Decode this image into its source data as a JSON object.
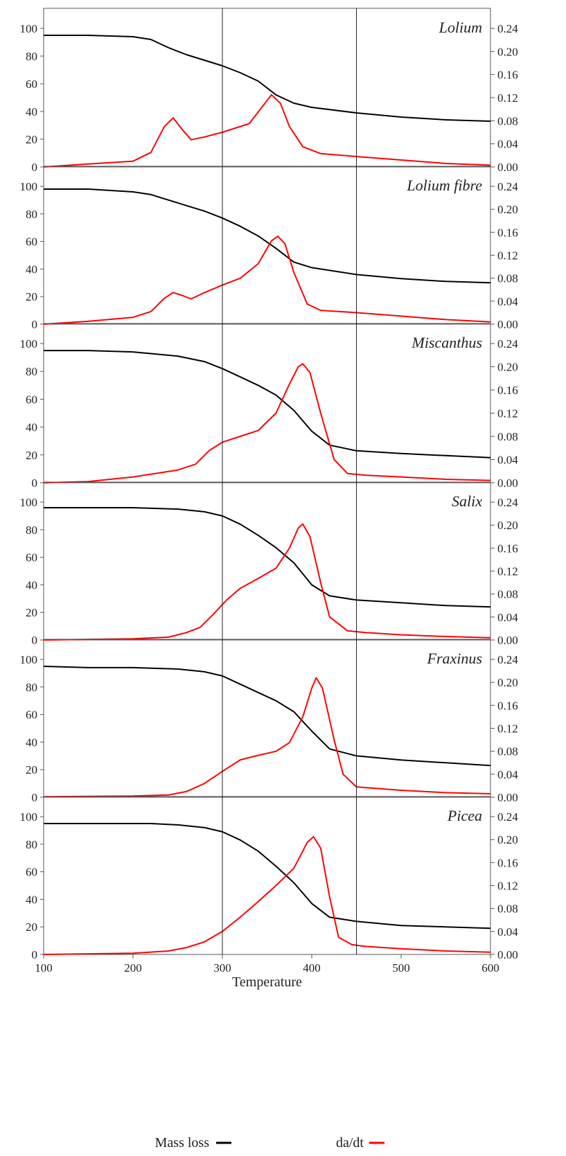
{
  "chart_data": {
    "type": "line",
    "xlabel": "Temperature",
    "xlim": [
      100,
      600
    ],
    "x_ticks": [
      "100",
      "200",
      "300",
      "400",
      "500",
      "600"
    ],
    "ylim_left": [
      0,
      100
    ],
    "y_left_ticks": [
      "0",
      "20",
      "40",
      "60",
      "80",
      "100"
    ],
    "ylim_right": [
      0,
      0.24
    ],
    "y_right_ticks": [
      "0.00",
      "0.04",
      "0.08",
      "0.12",
      "0.16",
      "0.20",
      "0.24"
    ],
    "reference_lines_x": [
      300,
      450
    ],
    "legend": [
      {
        "label": "Mass loss",
        "color": "#000000"
      },
      {
        "label": "da/dt",
        "color": "#ff0000"
      }
    ],
    "colors": {
      "mass_loss": "#000000",
      "rate": "#ff0000"
    },
    "panels": [
      {
        "name": "Lolium",
        "mass_loss": [
          [
            100,
            95
          ],
          [
            150,
            95
          ],
          [
            200,
            94
          ],
          [
            220,
            92
          ],
          [
            240,
            86
          ],
          [
            260,
            81
          ],
          [
            280,
            77
          ],
          [
            300,
            73
          ],
          [
            320,
            68
          ],
          [
            340,
            62
          ],
          [
            360,
            52
          ],
          [
            380,
            46
          ],
          [
            400,
            43
          ],
          [
            450,
            39
          ],
          [
            500,
            36
          ],
          [
            550,
            34
          ],
          [
            600,
            33
          ]
        ],
        "rate": [
          [
            100,
            0
          ],
          [
            150,
            0.005
          ],
          [
            200,
            0.01
          ],
          [
            220,
            0.025
          ],
          [
            235,
            0.07
          ],
          [
            245,
            0.085
          ],
          [
            255,
            0.065
          ],
          [
            265,
            0.047
          ],
          [
            280,
            0.052
          ],
          [
            300,
            0.06
          ],
          [
            330,
            0.075
          ],
          [
            345,
            0.105
          ],
          [
            355,
            0.125
          ],
          [
            365,
            0.11
          ],
          [
            375,
            0.07
          ],
          [
            390,
            0.035
          ],
          [
            410,
            0.023
          ],
          [
            450,
            0.018
          ],
          [
            500,
            0.012
          ],
          [
            550,
            0.006
          ],
          [
            600,
            0.003
          ]
        ]
      },
      {
        "name": "Lolium fibre",
        "mass_loss": [
          [
            100,
            98
          ],
          [
            150,
            98
          ],
          [
            200,
            96
          ],
          [
            220,
            94
          ],
          [
            240,
            90
          ],
          [
            260,
            86
          ],
          [
            280,
            82
          ],
          [
            300,
            77
          ],
          [
            320,
            71
          ],
          [
            340,
            64
          ],
          [
            360,
            55
          ],
          [
            380,
            45
          ],
          [
            400,
            41
          ],
          [
            450,
            36
          ],
          [
            500,
            33
          ],
          [
            550,
            31
          ],
          [
            600,
            30
          ]
        ],
        "rate": [
          [
            100,
            0
          ],
          [
            150,
            0.005
          ],
          [
            200,
            0.012
          ],
          [
            220,
            0.022
          ],
          [
            235,
            0.045
          ],
          [
            245,
            0.055
          ],
          [
            255,
            0.05
          ],
          [
            265,
            0.044
          ],
          [
            280,
            0.055
          ],
          [
            300,
            0.068
          ],
          [
            320,
            0.08
          ],
          [
            340,
            0.105
          ],
          [
            355,
            0.145
          ],
          [
            362,
            0.153
          ],
          [
            370,
            0.14
          ],
          [
            380,
            0.09
          ],
          [
            395,
            0.035
          ],
          [
            410,
            0.024
          ],
          [
            450,
            0.02
          ],
          [
            500,
            0.014
          ],
          [
            550,
            0.008
          ],
          [
            600,
            0.004
          ]
        ]
      },
      {
        "name": "Miscanthus",
        "mass_loss": [
          [
            100,
            95
          ],
          [
            150,
            95
          ],
          [
            200,
            94
          ],
          [
            250,
            91
          ],
          [
            280,
            87
          ],
          [
            300,
            82
          ],
          [
            320,
            76
          ],
          [
            340,
            70
          ],
          [
            360,
            63
          ],
          [
            380,
            52
          ],
          [
            400,
            37
          ],
          [
            420,
            27
          ],
          [
            450,
            23
          ],
          [
            500,
            21
          ],
          [
            550,
            19.5
          ],
          [
            600,
            18
          ]
        ],
        "rate": [
          [
            100,
            0
          ],
          [
            150,
            0.002
          ],
          [
            200,
            0.01
          ],
          [
            250,
            0.022
          ],
          [
            270,
            0.032
          ],
          [
            285,
            0.055
          ],
          [
            300,
            0.07
          ],
          [
            320,
            0.08
          ],
          [
            340,
            0.09
          ],
          [
            360,
            0.12
          ],
          [
            375,
            0.17
          ],
          [
            385,
            0.2
          ],
          [
            390,
            0.205
          ],
          [
            398,
            0.19
          ],
          [
            410,
            0.12
          ],
          [
            425,
            0.04
          ],
          [
            440,
            0.016
          ],
          [
            460,
            0.013
          ],
          [
            500,
            0.01
          ],
          [
            550,
            0.006
          ],
          [
            600,
            0.004
          ]
        ]
      },
      {
        "name": "Salix",
        "mass_loss": [
          [
            100,
            96
          ],
          [
            200,
            96
          ],
          [
            250,
            95
          ],
          [
            280,
            93
          ],
          [
            300,
            90
          ],
          [
            320,
            84
          ],
          [
            340,
            76
          ],
          [
            360,
            67
          ],
          [
            380,
            56
          ],
          [
            400,
            40
          ],
          [
            420,
            32
          ],
          [
            450,
            29
          ],
          [
            500,
            27
          ],
          [
            550,
            25
          ],
          [
            600,
            24
          ]
        ],
        "rate": [
          [
            100,
            0
          ],
          [
            200,
            0.002
          ],
          [
            240,
            0.005
          ],
          [
            260,
            0.013
          ],
          [
            275,
            0.022
          ],
          [
            290,
            0.045
          ],
          [
            305,
            0.07
          ],
          [
            320,
            0.09
          ],
          [
            340,
            0.107
          ],
          [
            360,
            0.125
          ],
          [
            375,
            0.16
          ],
          [
            385,
            0.195
          ],
          [
            390,
            0.202
          ],
          [
            398,
            0.18
          ],
          [
            410,
            0.1
          ],
          [
            420,
            0.04
          ],
          [
            440,
            0.016
          ],
          [
            460,
            0.013
          ],
          [
            500,
            0.009
          ],
          [
            550,
            0.006
          ],
          [
            600,
            0.004
          ]
        ]
      },
      {
        "name": "Fraxinus",
        "mass_loss": [
          [
            100,
            95
          ],
          [
            150,
            94
          ],
          [
            200,
            94
          ],
          [
            250,
            93
          ],
          [
            280,
            91
          ],
          [
            300,
            88
          ],
          [
            320,
            82
          ],
          [
            340,
            76
          ],
          [
            360,
            70
          ],
          [
            380,
            62
          ],
          [
            400,
            48
          ],
          [
            420,
            35
          ],
          [
            450,
            30
          ],
          [
            500,
            27
          ],
          [
            550,
            25
          ],
          [
            600,
            23
          ]
        ],
        "rate": [
          [
            100,
            0.001
          ],
          [
            200,
            0.002
          ],
          [
            240,
            0.004
          ],
          [
            260,
            0.01
          ],
          [
            280,
            0.024
          ],
          [
            300,
            0.045
          ],
          [
            320,
            0.065
          ],
          [
            340,
            0.073
          ],
          [
            360,
            0.08
          ],
          [
            375,
            0.095
          ],
          [
            390,
            0.14
          ],
          [
            400,
            0.19
          ],
          [
            405,
            0.208
          ],
          [
            412,
            0.19
          ],
          [
            425,
            0.1
          ],
          [
            435,
            0.04
          ],
          [
            450,
            0.018
          ],
          [
            500,
            0.012
          ],
          [
            550,
            0.008
          ],
          [
            600,
            0.006
          ]
        ]
      },
      {
        "name": "Picea",
        "mass_loss": [
          [
            100,
            95
          ],
          [
            200,
            95
          ],
          [
            220,
            95
          ],
          [
            250,
            94
          ],
          [
            280,
            92
          ],
          [
            300,
            89
          ],
          [
            320,
            83
          ],
          [
            340,
            75
          ],
          [
            360,
            64
          ],
          [
            380,
            52
          ],
          [
            400,
            37
          ],
          [
            420,
            27
          ],
          [
            450,
            24
          ],
          [
            500,
            21
          ],
          [
            550,
            20
          ],
          [
            600,
            19
          ]
        ],
        "rate": [
          [
            100,
            0
          ],
          [
            200,
            0.002
          ],
          [
            240,
            0.006
          ],
          [
            260,
            0.012
          ],
          [
            280,
            0.022
          ],
          [
            300,
            0.04
          ],
          [
            320,
            0.065
          ],
          [
            340,
            0.092
          ],
          [
            360,
            0.12
          ],
          [
            380,
            0.15
          ],
          [
            395,
            0.195
          ],
          [
            402,
            0.205
          ],
          [
            410,
            0.185
          ],
          [
            420,
            0.1
          ],
          [
            430,
            0.03
          ],
          [
            445,
            0.017
          ],
          [
            460,
            0.014
          ],
          [
            500,
            0.01
          ],
          [
            550,
            0.006
          ],
          [
            600,
            0.004
          ]
        ]
      }
    ]
  }
}
